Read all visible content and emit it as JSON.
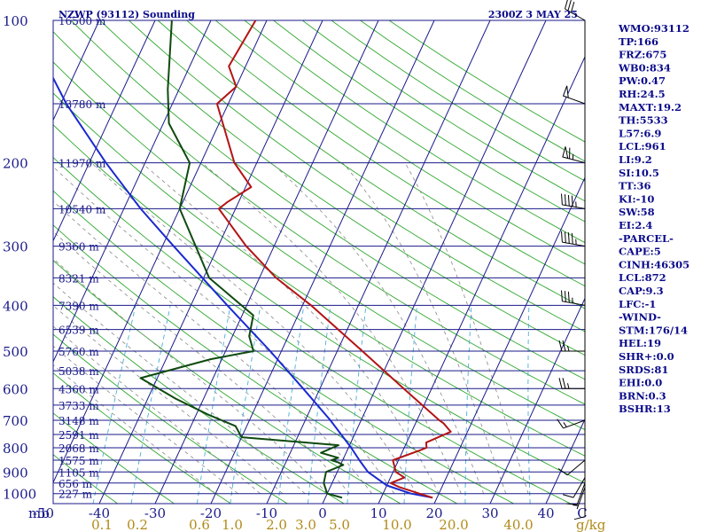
{
  "header": {
    "left_title": "NZWP (93112) Sounding",
    "right_title": "2300Z  3 MAY 25"
  },
  "colors": {
    "isobar": "#1a1a8a",
    "isotherm": "#1a1a8a",
    "dry_adiabat": "#2fa82f",
    "mixing_ratio": "#48b0d8",
    "moist_adiabat": "#888888",
    "temperature": "#b41414",
    "dewpoint": "#0f4a0f",
    "parcel": "#1a2ad0",
    "stats_text": "#0a0a8a",
    "mixing_ratio_labels": "#b08a18"
  },
  "stats": [
    "WMO:93112",
    "TP:166",
    "FRZ:675",
    "WB0:834",
    "PW:0.47",
    "RH:24.5",
    "MAXT:19.2",
    "TH:5533",
    "L57:6.9",
    "LCL:961",
    "LI:9.2",
    "SI:10.5",
    "TT:36",
    "KI:-10",
    "SW:58",
    "EI:2.4",
    "-PARCEL-",
    "CAPE:5",
    "CINH:46305",
    "LCL:872",
    "CAP:9.3",
    "LFC:-1",
    "-WIND-",
    "STM:176/14",
    "HEL:19",
    "SHR+:0.0",
    "SRDS:81",
    "EHI:0.0",
    "BRN:0.3",
    "BSHR:13"
  ],
  "chart_data": {
    "type": "skew-t",
    "x_axis_unit": "mb",
    "pressure_labels": [
      {
        "p": 100,
        "label": "100"
      },
      {
        "p": 200,
        "label": "200"
      },
      {
        "p": 300,
        "label": "300"
      },
      {
        "p": 400,
        "label": "400"
      },
      {
        "p": 500,
        "label": "500"
      },
      {
        "p": 600,
        "label": "600"
      },
      {
        "p": 700,
        "label": "700"
      },
      {
        "p": 800,
        "label": "800"
      },
      {
        "p": 900,
        "label": "900"
      },
      {
        "p": 1000,
        "label": "1000"
      }
    ],
    "height_labels": [
      {
        "p": 100,
        "label": "16500 m"
      },
      {
        "p": 150,
        "label": "13780 m"
      },
      {
        "p": 200,
        "label": "11970 m"
      },
      {
        "p": 250,
        "label": "10540 m"
      },
      {
        "p": 300,
        "label": "9360 m"
      },
      {
        "p": 350,
        "label": "8321 m"
      },
      {
        "p": 400,
        "label": "7390 m"
      },
      {
        "p": 450,
        "label": "6539 m"
      },
      {
        "p": 500,
        "label": "5760 m"
      },
      {
        "p": 550,
        "label": "5038 m"
      },
      {
        "p": 600,
        "label": "4360 m"
      },
      {
        "p": 650,
        "label": "3733 m"
      },
      {
        "p": 700,
        "label": "3148 m"
      },
      {
        "p": 750,
        "label": "2591 m"
      },
      {
        "p": 800,
        "label": "2068 m"
      },
      {
        "p": 850,
        "label": "1575 m"
      },
      {
        "p": 900,
        "label": "1105 m"
      },
      {
        "p": 950,
        "label": "656 m"
      },
      {
        "p": 1000,
        "label": "227 m"
      }
    ],
    "temperature_ticks": [
      -50,
      -40,
      -30,
      -20,
      -10,
      0,
      10,
      20,
      30,
      40
    ],
    "last_temperature_tick_label": "C",
    "mixing_ratio_labels": [
      "0.1",
      "0.2",
      "0.6",
      "1.0",
      "2.0",
      "3.0",
      "5.0",
      "10.0",
      "20.0",
      "40.0"
    ],
    "mixing_ratio_unit": "g/kg",
    "temperature_profile": [
      [
        1020,
        19.2
      ],
      [
        1000,
        16.5
      ],
      [
        970,
        12.5
      ],
      [
        950,
        10.5
      ],
      [
        925,
        12.5
      ],
      [
        900,
        10.5
      ],
      [
        850,
        9.0
      ],
      [
        810,
        13.0
      ],
      [
        800,
        14.0
      ],
      [
        780,
        13.5
      ],
      [
        740,
        17.0
      ],
      [
        710,
        15.0
      ],
      [
        700,
        14.0
      ],
      [
        600,
        5.0
      ],
      [
        500,
        -5.5
      ],
      [
        400,
        -18.5
      ],
      [
        350,
        -27.0
      ],
      [
        300,
        -35.0
      ],
      [
        250,
        -43.0
      ],
      [
        242,
        -42.0
      ],
      [
        225,
        -39.0
      ],
      [
        200,
        -44.0
      ],
      [
        150,
        -52.0
      ],
      [
        138,
        -50.0
      ],
      [
        125,
        -53.0
      ],
      [
        100,
        -52.0
      ]
    ],
    "dewpoint_profile": [
      [
        1020,
        3.0
      ],
      [
        1000,
        0.0
      ],
      [
        950,
        -1.5
      ],
      [
        900,
        -2.0
      ],
      [
        870,
        0.5
      ],
      [
        860,
        -0.5
      ],
      [
        850,
        -2.0
      ],
      [
        840,
        -1.0
      ],
      [
        820,
        -4.5
      ],
      [
        790,
        -2.0
      ],
      [
        760,
        -20.0
      ],
      [
        720,
        -22.0
      ],
      [
        680,
        -28.0
      ],
      [
        630,
        -35.0
      ],
      [
        570,
        -43.0
      ],
      [
        520,
        -32.0
      ],
      [
        500,
        -25.0
      ],
      [
        465,
        -27.0
      ],
      [
        420,
        -28.0
      ],
      [
        350,
        -39.0
      ],
      [
        250,
        -50.0
      ],
      [
        200,
        -52.0
      ],
      [
        165,
        -59.0
      ],
      [
        140,
        -62.0
      ],
      [
        100,
        -67.0
      ]
    ],
    "parcel_profile": [
      [
        1020,
        19.2
      ],
      [
        1000,
        15.0
      ],
      [
        961,
        10.0
      ],
      [
        900,
        5.5
      ],
      [
        850,
        3.0
      ],
      [
        800,
        0.5
      ],
      [
        700,
        -5.5
      ],
      [
        600,
        -13.0
      ],
      [
        500,
        -22.0
      ],
      [
        400,
        -33.5
      ],
      [
        300,
        -48.0
      ],
      [
        250,
        -57.0
      ],
      [
        200,
        -67.0
      ],
      [
        150,
        -79.0
      ],
      [
        120,
        -87.0
      ]
    ],
    "wind_barbs": [
      {
        "p": 1000,
        "dir": 180,
        "spd": 10
      },
      {
        "p": 970,
        "dir": 200,
        "spd": 5
      },
      {
        "p": 950,
        "dir": 200,
        "spd": 10
      },
      {
        "p": 925,
        "dir": 210,
        "spd": 10
      },
      {
        "p": 850,
        "dir": 230,
        "spd": 10
      },
      {
        "p": 700,
        "dir": 250,
        "spd": 15
      },
      {
        "p": 600,
        "dir": 270,
        "spd": 25
      },
      {
        "p": 500,
        "dir": 270,
        "spd": 25
      },
      {
        "p": 400,
        "dir": 280,
        "spd": 35
      },
      {
        "p": 300,
        "dir": 280,
        "spd": 45
      },
      {
        "p": 250,
        "dir": 280,
        "spd": 45
      },
      {
        "p": 200,
        "dir": 285,
        "spd": 65
      },
      {
        "p": 150,
        "dir": 290,
        "spd": 50
      },
      {
        "p": 100,
        "dir": 300,
        "spd": 30
      }
    ]
  }
}
